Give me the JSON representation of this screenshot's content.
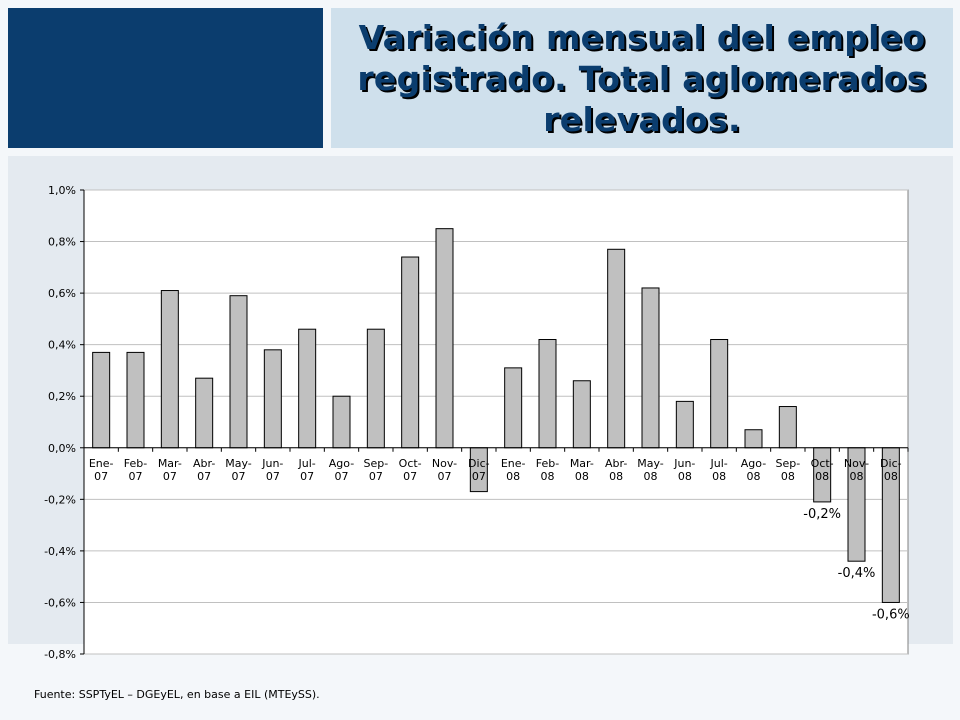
{
  "header": {
    "title_line1": "Variación mensual del empleo",
    "title_line2": "registrado. Total aglomerados",
    "title_line3": "relevados."
  },
  "footer": {
    "source": "Fuente: SSPTyEL – DGEyEL, en base a EIL (MTEySS)."
  },
  "colors": {
    "accent": "#0b3d6e",
    "title_bg": "#cfe0ec",
    "bar_fill": "#c0c0c0"
  },
  "chart_data": {
    "type": "bar",
    "title": "",
    "xlabel": "",
    "ylabel": "",
    "grid": true,
    "categories": [
      "Ene-07",
      "Feb-07",
      "Mar-07",
      "Abr-07",
      "May-07",
      "Jun-07",
      "Jul-07",
      "Ago-07",
      "Sep-07",
      "Oct-07",
      "Nov-07",
      "Dic-07",
      "Ene-08",
      "Feb-08",
      "Mar-08",
      "Abr-08",
      "May-08",
      "Jun-08",
      "Jul-08",
      "Ago-08",
      "Sep-08",
      "Oct-08",
      "Nov-08",
      "Dic-08"
    ],
    "category_lines": [
      [
        "Ene-",
        "07"
      ],
      [
        "Feb-",
        "07"
      ],
      [
        "Mar-",
        "07"
      ],
      [
        "Abr-",
        "07"
      ],
      [
        "May-",
        "07"
      ],
      [
        "Jun-",
        "07"
      ],
      [
        "Jul-",
        "07"
      ],
      [
        "Ago-",
        "07"
      ],
      [
        "Sep-",
        "07"
      ],
      [
        "Oct-",
        "07"
      ],
      [
        "Nov-",
        "07"
      ],
      [
        "Dic-",
        "07"
      ],
      [
        "Ene-",
        "08"
      ],
      [
        "Feb-",
        "08"
      ],
      [
        "Mar-",
        "08"
      ],
      [
        "Abr-",
        "08"
      ],
      [
        "May-",
        "08"
      ],
      [
        "Jun-",
        "08"
      ],
      [
        "Jul-",
        "08"
      ],
      [
        "Ago-",
        "08"
      ],
      [
        "Sep-",
        "08"
      ],
      [
        "Oct-",
        "08"
      ],
      [
        "Nov-",
        "08"
      ],
      [
        "Dic-",
        "08"
      ]
    ],
    "values": [
      0.37,
      0.37,
      0.61,
      0.27,
      0.59,
      0.38,
      0.46,
      0.2,
      0.46,
      0.74,
      0.85,
      -0.17,
      0.31,
      0.42,
      0.26,
      0.77,
      0.62,
      0.18,
      0.42,
      0.07,
      0.16,
      -0.21,
      -0.44,
      -0.6
    ],
    "ylim": [
      -0.8,
      1.0
    ],
    "yticks": [
      1.0,
      0.8,
      0.6,
      0.4,
      0.2,
      0.0,
      -0.2,
      -0.4,
      -0.6,
      -0.8
    ],
    "ytick_labels": [
      "1,0%",
      "0,8%",
      "0,6%",
      "0,4%",
      "0,2%",
      "0,0%",
      "-0,2%",
      "-0,4%",
      "-0,6%",
      "-0,8%"
    ],
    "data_labels": [
      {
        "index": 21,
        "text": "-0,2%"
      },
      {
        "index": 22,
        "text": "-0,4%"
      },
      {
        "index": 23,
        "text": "-0,6%"
      }
    ]
  }
}
